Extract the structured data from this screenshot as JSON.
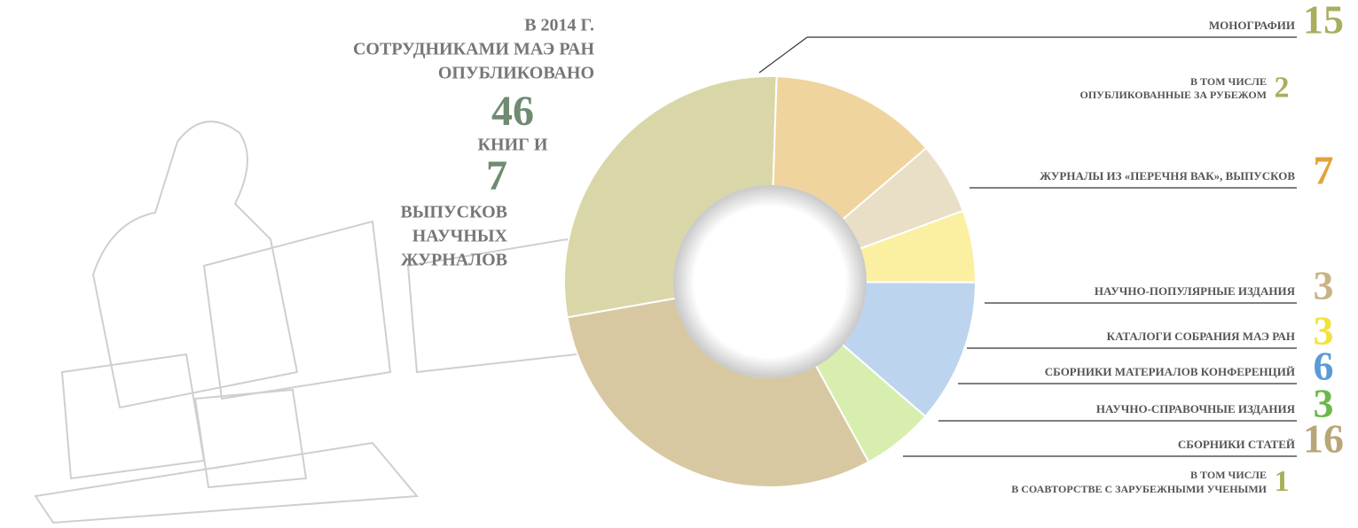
{
  "chart_data": {
    "type": "pie",
    "headline": {
      "lines": [
        "В 2014 Г.",
        "СОТРУДНИКАМИ МАЭ РАН",
        "ОПУБЛИКОВАНО"
      ],
      "books": 46,
      "books_text": "КНИГ И",
      "journals": 7,
      "journals_text": [
        "ВЫПУСКОВ",
        "НАУЧНЫХ",
        "ЖУРНАЛОВ"
      ]
    },
    "categories": [
      "МОНОГРАФИИ",
      "ЖУРНАЛЫ ИЗ «ПЕРЕЧНЯ ВАК», ВЫПУСКОВ",
      "НАУЧНО-ПОПУЛЯРНЫЕ ИЗДАНИЯ",
      "КАТАЛОГИ СОБРАНИЯ МАЭ РАН",
      "СБОРНИКИ МАТЕРИАЛОВ КОНФЕРЕНЦИЙ",
      "НАУЧНО-СПРАВОЧНЫЕ ИЗДАНИЯ",
      "СБОРНИКИ СТАТЕЙ"
    ],
    "values": [
      15,
      7,
      3,
      3,
      6,
      3,
      16
    ],
    "colors": [
      "#d9d7a8",
      "#f0d49e",
      "#e9dec6",
      "#fbf0a2",
      "#bdd4ee",
      "#d7eeae",
      "#d8c8a2"
    ],
    "label_colors": [
      "#a9ae5c",
      "#e3a23a",
      "#c8b386",
      "#f3e23c",
      "#5b9bd5",
      "#6cb84a",
      "#b9a678"
    ],
    "notes": [
      {
        "lines": [
          "В ТОМ ЧИСЛЕ",
          "ОПУБЛИКОВАННЫЕ ЗА РУБЕЖОМ"
        ],
        "value": 2,
        "color": "#a9ae5c"
      },
      {
        "lines": [
          "В ТОМ ЧИСЛЕ",
          "В СОАВТОРСТВЕ С ЗАРУБЕЖНЫМИ УЧЕНЫМИ"
        ],
        "value": 1,
        "color": "#a9ae5c"
      }
    ]
  }
}
